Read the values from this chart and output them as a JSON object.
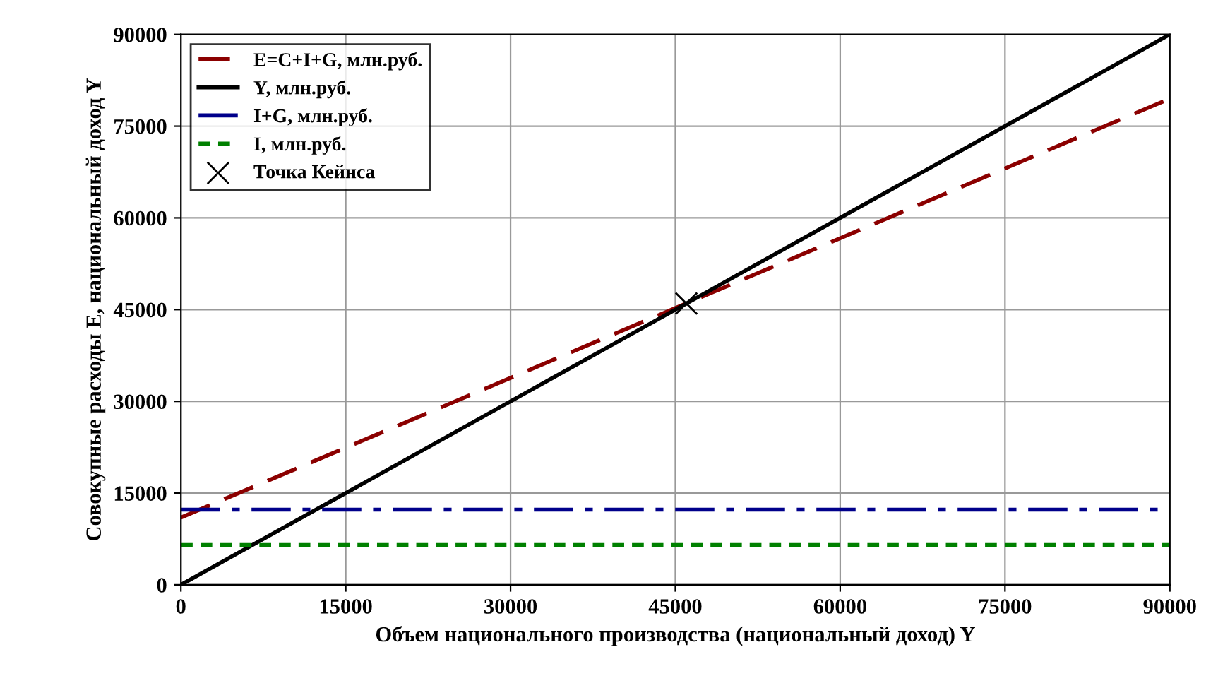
{
  "chart_data": {
    "type": "line",
    "xlabel": "Объем национального производства (национальный доход) Y",
    "ylabel": "Совокупные расходы E, национальный доход Y",
    "xlim": [
      0,
      90000
    ],
    "ylim": [
      0,
      90000
    ],
    "xticks": [
      0,
      15000,
      30000,
      45000,
      60000,
      75000,
      90000
    ],
    "yticks": [
      0,
      15000,
      30000,
      45000,
      60000,
      75000,
      90000
    ],
    "grid": true,
    "legend": "top left",
    "series": [
      {
        "name": "E=C+I+G, млн.руб.",
        "color": "#8b0000",
        "x": [
          0,
          90000
        ],
        "values": [
          11000,
          79500
        ],
        "line_style": "dashed",
        "marker": "none"
      },
      {
        "name": "Y, млн.руб.",
        "color": "#000000",
        "x": [
          0,
          90000
        ],
        "values": [
          0,
          90000
        ],
        "line_style": "solid",
        "marker": "none"
      },
      {
        "name": "I+G, млн.руб.",
        "color": "#00008b",
        "x": [
          0,
          90000
        ],
        "values": [
          12300,
          12300
        ],
        "line_style": "dashdot",
        "marker": "none"
      },
      {
        "name": "I, млн.руб.",
        "color": "#008000",
        "x": [
          0,
          90000
        ],
        "values": [
          6500,
          6500
        ],
        "line_style": "dotted",
        "marker": "none"
      },
      {
        "name": "Точка Кейнса",
        "type": "scatter",
        "color": "#000000",
        "x": [
          46000
        ],
        "values": [
          46000
        ],
        "marker": "cross"
      }
    ]
  }
}
